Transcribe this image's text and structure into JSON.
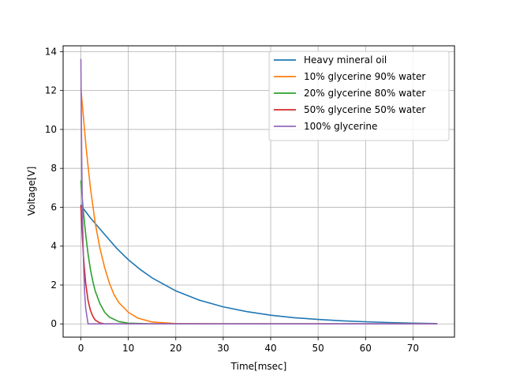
{
  "chart_data": {
    "type": "line",
    "title": "",
    "xlabel": "Time[msec]",
    "ylabel": "Voltage[V]",
    "xlim": [
      -3.75,
      78.75
    ],
    "ylim": [
      -0.68,
      14.3
    ],
    "xticks": [
      0,
      10,
      20,
      30,
      40,
      50,
      60,
      70
    ],
    "yticks": [
      0,
      2,
      4,
      6,
      8,
      10,
      12,
      14
    ],
    "grid": true,
    "legend_position": "top-right",
    "series": [
      {
        "name": "Heavy mineral oil",
        "color": "#1f77b4",
        "x": [
          0,
          2,
          5,
          7.5,
          10,
          12.5,
          15,
          20,
          25,
          30,
          35,
          40,
          45,
          50,
          55,
          60,
          65,
          70,
          75
        ],
        "y": [
          6.1,
          5.45,
          4.6,
          3.9,
          3.3,
          2.8,
          2.37,
          1.7,
          1.22,
          0.88,
          0.63,
          0.45,
          0.32,
          0.23,
          0.16,
          0.11,
          0.07,
          0.04,
          0.02
        ]
      },
      {
        "name": "10% glycerine 90% water",
        "color": "#ff7f0e",
        "x": [
          0,
          0.5,
          1,
          1.5,
          2,
          3,
          4,
          5,
          6,
          7,
          8,
          10,
          12,
          15,
          20,
          30,
          75
        ],
        "y": [
          12.1,
          10.7,
          9.3,
          8.1,
          7.0,
          5.2,
          3.9,
          2.9,
          2.1,
          1.5,
          1.1,
          0.6,
          0.3,
          0.1,
          0.02,
          0.0,
          0.0
        ]
      },
      {
        "name": "20% glycerine 80% water",
        "color": "#2ca02c",
        "x": [
          0,
          0.5,
          1,
          1.5,
          2,
          2.5,
          3,
          4,
          5,
          6,
          8,
          10,
          15,
          75
        ],
        "y": [
          7.35,
          5.8,
          4.6,
          3.6,
          2.8,
          2.2,
          1.7,
          1.05,
          0.6,
          0.35,
          0.12,
          0.04,
          0.0,
          0.0
        ]
      },
      {
        "name": "50% glycerine 50% water",
        "color": "#d62728",
        "x": [
          0,
          0.25,
          0.5,
          0.75,
          1,
          1.5,
          2,
          2.5,
          3,
          4,
          5,
          75
        ],
        "y": [
          6.05,
          4.7,
          3.6,
          2.8,
          2.1,
          1.2,
          0.7,
          0.4,
          0.2,
          0.05,
          0.0,
          0.0
        ]
      },
      {
        "name": "100% glycerine",
        "color": "#9467bd",
        "x": [
          0,
          0.05,
          0.1,
          0.2,
          0.3,
          0.4,
          0.5,
          0.6,
          0.8,
          1.0,
          1.5,
          75
        ],
        "y": [
          13.6,
          12.0,
          10.5,
          8.0,
          6.2,
          4.8,
          3.6,
          2.7,
          1.5,
          0.8,
          0.0,
          0.0
        ]
      }
    ]
  }
}
